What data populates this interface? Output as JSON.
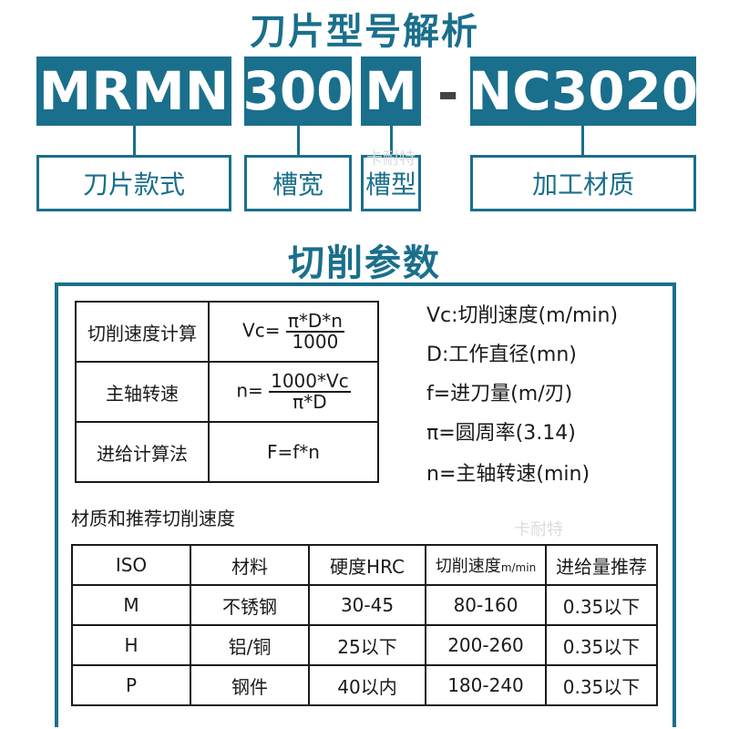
{
  "header": {
    "title": "刀片型号解析",
    "codes": [
      "MRMN",
      "300",
      "M",
      "NC3020"
    ],
    "dash": "-",
    "labels": [
      "刀片款式",
      "槽宽",
      "槽型",
      "加工材质"
    ]
  },
  "section": {
    "title": "切削参数"
  },
  "formulas": [
    {
      "name": "切削速度计算",
      "prefix": "Vc=",
      "num": "π*D*n",
      "den": "1000"
    },
    {
      "name": "主轴转速",
      "prefix": "n=",
      "num": "1000*Vc",
      "den": "π*D"
    },
    {
      "name": "进给计算法",
      "formula": "F=f*n"
    }
  ],
  "notes": [
    "Vc:切削速度(m/min)",
    "D:工作直径(mn)",
    "f=进刀量(m/刃)",
    "π=圆周率(3.14)",
    "n=主轴转速(min)"
  ],
  "materials": {
    "heading": "材质和推荐切削速度",
    "columns": [
      "ISO",
      "材料",
      "硬度HRC",
      "切削速度",
      "m/min",
      "进给量推荐"
    ],
    "rows": [
      [
        "M",
        "不锈钢",
        "30-45",
        "80-160",
        "0.35以下"
      ],
      [
        "H",
        "铝/铜",
        "25以下",
        "200-260",
        "0.35以下"
      ],
      [
        "P",
        "钢件",
        "40以内",
        "180-240",
        "0.35以下"
      ]
    ]
  },
  "watermark": "卡耐特",
  "colors": {
    "accent": "#1a6f8c",
    "text": "#1a1a1a"
  }
}
